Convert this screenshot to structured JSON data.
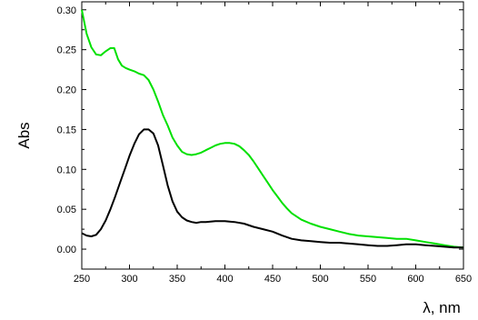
{
  "chart_data": {
    "type": "line",
    "title": "",
    "xlabel": "λ, nm",
    "ylabel": "Abs",
    "xlim": [
      250,
      650
    ],
    "ylim": [
      -0.025,
      0.31
    ],
    "x_ticks": [
      250,
      300,
      350,
      400,
      450,
      500,
      550,
      600,
      650
    ],
    "y_ticks": [
      0.0,
      0.05,
      0.1,
      0.15,
      0.2,
      0.25,
      0.3
    ],
    "y_tick_labels": [
      "0.00",
      "0.05",
      "0.10",
      "0.15",
      "0.20",
      "0.25",
      "0.30"
    ],
    "grid": false,
    "legend": "none",
    "series": [
      {
        "color": "#00e000",
        "points": [
          [
            250,
            0.3
          ],
          [
            255,
            0.27
          ],
          [
            260,
            0.253
          ],
          [
            265,
            0.244
          ],
          [
            270,
            0.243
          ],
          [
            275,
            0.248
          ],
          [
            280,
            0.252
          ],
          [
            284,
            0.252
          ],
          [
            288,
            0.238
          ],
          [
            292,
            0.23
          ],
          [
            296,
            0.227
          ],
          [
            300,
            0.225
          ],
          [
            305,
            0.223
          ],
          [
            310,
            0.22
          ],
          [
            315,
            0.218
          ],
          [
            320,
            0.212
          ],
          [
            325,
            0.2
          ],
          [
            330,
            0.185
          ],
          [
            335,
            0.168
          ],
          [
            340,
            0.155
          ],
          [
            345,
            0.14
          ],
          [
            350,
            0.13
          ],
          [
            355,
            0.122
          ],
          [
            360,
            0.119
          ],
          [
            365,
            0.118
          ],
          [
            370,
            0.119
          ],
          [
            375,
            0.121
          ],
          [
            380,
            0.124
          ],
          [
            385,
            0.127
          ],
          [
            390,
            0.13
          ],
          [
            395,
            0.132
          ],
          [
            400,
            0.133
          ],
          [
            405,
            0.133
          ],
          [
            410,
            0.132
          ],
          [
            415,
            0.129
          ],
          [
            420,
            0.124
          ],
          [
            425,
            0.118
          ],
          [
            430,
            0.11
          ],
          [
            435,
            0.101
          ],
          [
            440,
            0.092
          ],
          [
            445,
            0.083
          ],
          [
            450,
            0.074
          ],
          [
            455,
            0.066
          ],
          [
            460,
            0.058
          ],
          [
            465,
            0.051
          ],
          [
            470,
            0.045
          ],
          [
            480,
            0.037
          ],
          [
            490,
            0.032
          ],
          [
            500,
            0.028
          ],
          [
            510,
            0.025
          ],
          [
            520,
            0.022
          ],
          [
            530,
            0.019
          ],
          [
            540,
            0.017
          ],
          [
            550,
            0.016
          ],
          [
            560,
            0.015
          ],
          [
            570,
            0.014
          ],
          [
            580,
            0.013
          ],
          [
            590,
            0.013
          ],
          [
            600,
            0.011
          ],
          [
            610,
            0.009
          ],
          [
            620,
            0.007
          ],
          [
            630,
            0.005
          ],
          [
            640,
            0.003
          ],
          [
            650,
            0.002
          ]
        ]
      },
      {
        "color": "#000000",
        "points": [
          [
            250,
            0.02
          ],
          [
            255,
            0.017
          ],
          [
            260,
            0.016
          ],
          [
            265,
            0.018
          ],
          [
            270,
            0.025
          ],
          [
            275,
            0.036
          ],
          [
            280,
            0.05
          ],
          [
            285,
            0.066
          ],
          [
            290,
            0.083
          ],
          [
            295,
            0.1
          ],
          [
            300,
            0.117
          ],
          [
            305,
            0.132
          ],
          [
            310,
            0.144
          ],
          [
            315,
            0.15
          ],
          [
            320,
            0.15
          ],
          [
            325,
            0.145
          ],
          [
            330,
            0.13
          ],
          [
            335,
            0.105
          ],
          [
            340,
            0.08
          ],
          [
            345,
            0.06
          ],
          [
            350,
            0.047
          ],
          [
            355,
            0.04
          ],
          [
            360,
            0.036
          ],
          [
            365,
            0.034
          ],
          [
            370,
            0.033
          ],
          [
            375,
            0.034
          ],
          [
            380,
            0.034
          ],
          [
            390,
            0.035
          ],
          [
            400,
            0.035
          ],
          [
            410,
            0.034
          ],
          [
            420,
            0.032
          ],
          [
            430,
            0.028
          ],
          [
            440,
            0.025
          ],
          [
            450,
            0.022
          ],
          [
            460,
            0.017
          ],
          [
            470,
            0.013
          ],
          [
            480,
            0.011
          ],
          [
            490,
            0.01
          ],
          [
            500,
            0.009
          ],
          [
            510,
            0.008
          ],
          [
            520,
            0.008
          ],
          [
            530,
            0.007
          ],
          [
            540,
            0.006
          ],
          [
            550,
            0.005
          ],
          [
            560,
            0.004
          ],
          [
            570,
            0.004
          ],
          [
            580,
            0.005
          ],
          [
            590,
            0.006
          ],
          [
            600,
            0.006
          ],
          [
            610,
            0.005
          ],
          [
            620,
            0.004
          ],
          [
            630,
            0.003
          ],
          [
            640,
            0.002
          ],
          [
            650,
            0.002
          ]
        ]
      }
    ]
  }
}
